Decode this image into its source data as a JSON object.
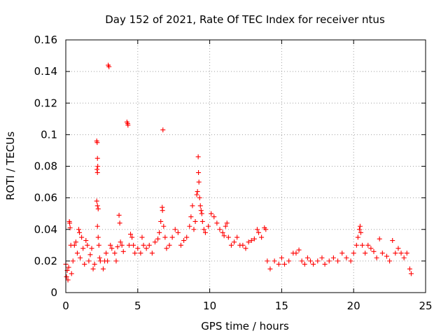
{
  "chart_data": {
    "type": "scatter",
    "title": "Day 152 of 2021, Rate Of TEC Index for receiver ntus",
    "xlabel": "GPS time / hours",
    "ylabel": "ROTI / TECUs",
    "xlim": [
      0,
      25
    ],
    "ylim": [
      0,
      0.16
    ],
    "x_ticks": [
      0,
      5,
      10,
      15,
      20,
      25
    ],
    "x_tick_labels": [
      "0",
      "5",
      "10",
      "15",
      "20",
      "25"
    ],
    "y_ticks": [
      0,
      0.02,
      0.04,
      0.06,
      0.08,
      0.1,
      0.12,
      0.14,
      0.16
    ],
    "y_tick_labels": [
      "0",
      "0.02",
      "0.04",
      "0.06",
      "0.08",
      "0.1",
      "0.12",
      "0.14",
      "0.16"
    ],
    "grid": true,
    "marker": "+",
    "color": "#ff0000",
    "series": [
      {
        "name": "ROTI",
        "points": [
          [
            0.0,
            0.018
          ],
          [
            0.05,
            0.01
          ],
          [
            0.1,
            0.014
          ],
          [
            0.15,
            0.008
          ],
          [
            0.2,
            0.016
          ],
          [
            0.25,
            0.045
          ],
          [
            0.27,
            0.044
          ],
          [
            0.3,
            0.041
          ],
          [
            0.35,
            0.03
          ],
          [
            0.4,
            0.012
          ],
          [
            0.5,
            0.02
          ],
          [
            0.6,
            0.03
          ],
          [
            0.7,
            0.032
          ],
          [
            0.8,
            0.025
          ],
          [
            0.9,
            0.04
          ],
          [
            0.95,
            0.038
          ],
          [
            1.0,
            0.022
          ],
          [
            1.1,
            0.035
          ],
          [
            1.2,
            0.028
          ],
          [
            1.3,
            0.018
          ],
          [
            1.4,
            0.033
          ],
          [
            1.5,
            0.03
          ],
          [
            1.6,
            0.02
          ],
          [
            1.7,
            0.024
          ],
          [
            1.8,
            0.028
          ],
          [
            1.9,
            0.015
          ],
          [
            2.0,
            0.018
          ],
          [
            2.15,
            0.096
          ],
          [
            2.18,
            0.095
          ],
          [
            2.2,
            0.085
          ],
          [
            2.22,
            0.08
          ],
          [
            2.17,
            0.078
          ],
          [
            2.2,
            0.076
          ],
          [
            2.15,
            0.058
          ],
          [
            2.2,
            0.055
          ],
          [
            2.25,
            0.053
          ],
          [
            2.2,
            0.042
          ],
          [
            2.25,
            0.035
          ],
          [
            2.3,
            0.03
          ],
          [
            2.35,
            0.022
          ],
          [
            2.4,
            0.02
          ],
          [
            2.6,
            0.015
          ],
          [
            2.7,
            0.02
          ],
          [
            2.8,
            0.025
          ],
          [
            2.9,
            0.02
          ],
          [
            2.95,
            0.144
          ],
          [
            3.0,
            0.143
          ],
          [
            3.1,
            0.03
          ],
          [
            3.2,
            0.028
          ],
          [
            3.4,
            0.025
          ],
          [
            3.5,
            0.02
          ],
          [
            3.6,
            0.029
          ],
          [
            3.7,
            0.049
          ],
          [
            3.75,
            0.044
          ],
          [
            3.8,
            0.032
          ],
          [
            3.9,
            0.03
          ],
          [
            4.0,
            0.026
          ],
          [
            4.25,
            0.108
          ],
          [
            4.3,
            0.107
          ],
          [
            4.32,
            0.106
          ],
          [
            4.4,
            0.03
          ],
          [
            4.5,
            0.037
          ],
          [
            4.6,
            0.035
          ],
          [
            4.7,
            0.03
          ],
          [
            4.8,
            0.025
          ],
          [
            5.0,
            0.028
          ],
          [
            5.2,
            0.025
          ],
          [
            5.3,
            0.035
          ],
          [
            5.4,
            0.03
          ],
          [
            5.6,
            0.028
          ],
          [
            5.8,
            0.03
          ],
          [
            6.0,
            0.025
          ],
          [
            6.2,
            0.032
          ],
          [
            6.4,
            0.034
          ],
          [
            6.5,
            0.038
          ],
          [
            6.6,
            0.045
          ],
          [
            6.7,
            0.054
          ],
          [
            6.72,
            0.052
          ],
          [
            6.75,
            0.103
          ],
          [
            6.8,
            0.042
          ],
          [
            6.9,
            0.035
          ],
          [
            7.0,
            0.028
          ],
          [
            7.2,
            0.03
          ],
          [
            7.4,
            0.035
          ],
          [
            7.6,
            0.04
          ],
          [
            7.8,
            0.038
          ],
          [
            8.0,
            0.03
          ],
          [
            8.2,
            0.033
          ],
          [
            8.4,
            0.035
          ],
          [
            8.6,
            0.042
          ],
          [
            8.7,
            0.048
          ],
          [
            8.8,
            0.055
          ],
          [
            8.9,
            0.04
          ],
          [
            9.0,
            0.045
          ],
          [
            9.1,
            0.062
          ],
          [
            9.15,
            0.064
          ],
          [
            9.2,
            0.086
          ],
          [
            9.22,
            0.076
          ],
          [
            9.25,
            0.07
          ],
          [
            9.3,
            0.06
          ],
          [
            9.35,
            0.055
          ],
          [
            9.4,
            0.052
          ],
          [
            9.45,
            0.05
          ],
          [
            9.5,
            0.045
          ],
          [
            9.6,
            0.04
          ],
          [
            9.7,
            0.038
          ],
          [
            9.9,
            0.042
          ],
          [
            10.1,
            0.05
          ],
          [
            10.3,
            0.048
          ],
          [
            10.5,
            0.044
          ],
          [
            10.7,
            0.04
          ],
          [
            10.9,
            0.038
          ],
          [
            11.0,
            0.036
          ],
          [
            11.1,
            0.042
          ],
          [
            11.2,
            0.044
          ],
          [
            11.3,
            0.035
          ],
          [
            11.5,
            0.03
          ],
          [
            11.7,
            0.032
          ],
          [
            11.9,
            0.035
          ],
          [
            12.1,
            0.03
          ],
          [
            12.3,
            0.03
          ],
          [
            12.5,
            0.028
          ],
          [
            12.7,
            0.032
          ],
          [
            12.9,
            0.033
          ],
          [
            13.1,
            0.034
          ],
          [
            13.3,
            0.04
          ],
          [
            13.4,
            0.038
          ],
          [
            13.6,
            0.035
          ],
          [
            13.8,
            0.041
          ],
          [
            13.9,
            0.04
          ],
          [
            14.0,
            0.02
          ],
          [
            14.2,
            0.015
          ],
          [
            14.5,
            0.02
          ],
          [
            14.8,
            0.018
          ],
          [
            15.0,
            0.022
          ],
          [
            15.2,
            0.018
          ],
          [
            15.5,
            0.02
          ],
          [
            15.8,
            0.025
          ],
          [
            16.0,
            0.025
          ],
          [
            16.2,
            0.027
          ],
          [
            16.4,
            0.02
          ],
          [
            16.6,
            0.018
          ],
          [
            16.8,
            0.022
          ],
          [
            17.0,
            0.02
          ],
          [
            17.2,
            0.018
          ],
          [
            17.5,
            0.02
          ],
          [
            17.8,
            0.022
          ],
          [
            18.0,
            0.018
          ],
          [
            18.3,
            0.02
          ],
          [
            18.6,
            0.022
          ],
          [
            18.9,
            0.02
          ],
          [
            19.2,
            0.025
          ],
          [
            19.5,
            0.022
          ],
          [
            19.8,
            0.02
          ],
          [
            20.0,
            0.025
          ],
          [
            20.2,
            0.03
          ],
          [
            20.3,
            0.035
          ],
          [
            20.4,
            0.04
          ],
          [
            20.45,
            0.042
          ],
          [
            20.5,
            0.038
          ],
          [
            20.6,
            0.03
          ],
          [
            20.8,
            0.025
          ],
          [
            21.0,
            0.03
          ],
          [
            21.2,
            0.028
          ],
          [
            21.4,
            0.026
          ],
          [
            21.6,
            0.022
          ],
          [
            21.8,
            0.034
          ],
          [
            22.0,
            0.025
          ],
          [
            22.3,
            0.023
          ],
          [
            22.5,
            0.02
          ],
          [
            22.7,
            0.033
          ],
          [
            22.9,
            0.025
          ],
          [
            23.1,
            0.028
          ],
          [
            23.3,
            0.025
          ],
          [
            23.5,
            0.022
          ],
          [
            23.7,
            0.025
          ],
          [
            23.9,
            0.015
          ],
          [
            24.0,
            0.012
          ]
        ]
      }
    ]
  }
}
